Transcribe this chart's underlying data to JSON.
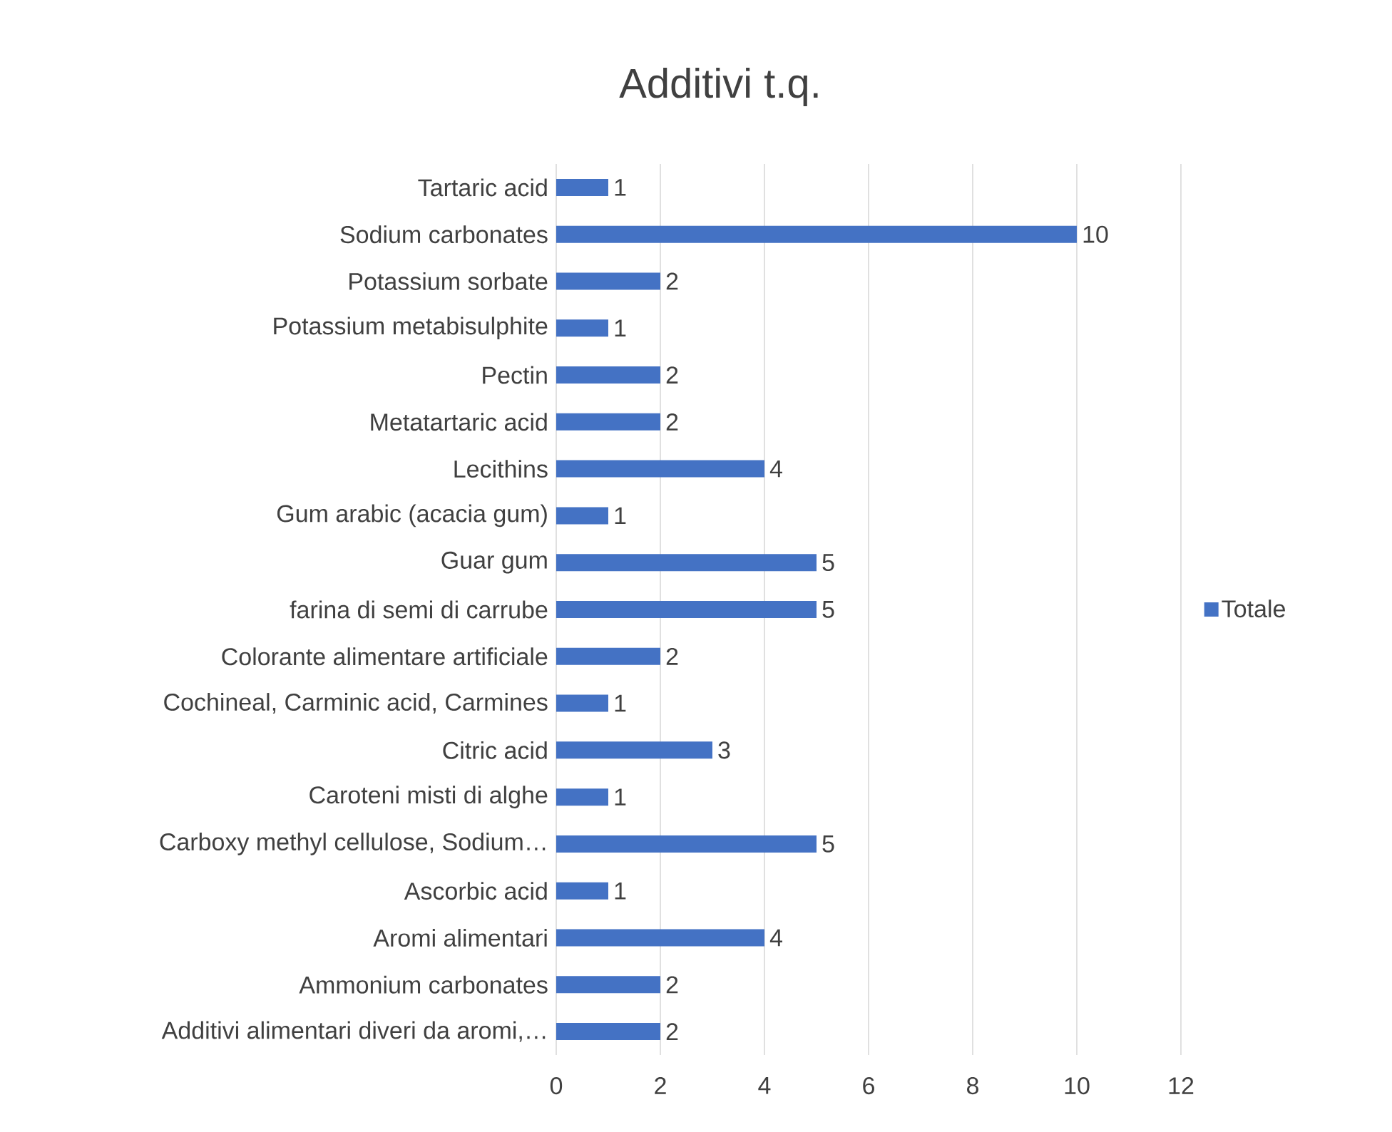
{
  "chart_data": {
    "type": "bar",
    "orientation": "horizontal",
    "title": "Additivi t.q.",
    "categories": [
      "Tartaric acid",
      "Sodium carbonates",
      "Potassium sorbate",
      "Potassium metabisulphite",
      "Pectin",
      "Metatartaric acid",
      "Lecithins",
      "Gum arabic (acacia gum)",
      "Guar gum",
      "farina di semi di carrube",
      "Colorante alimentare artificiale",
      "Cochineal, Carminic acid, Carmines",
      "Citric acid",
      "Caroteni misti di alghe",
      "Carboxy methyl cellulose, Sodium…",
      "Ascorbic acid",
      "Aromi alimentari",
      "Ammonium carbonates",
      "Additivi alimentari diveri da aromi,…"
    ],
    "series": [
      {
        "name": "Totale",
        "color": "#4472c4",
        "values": [
          1,
          10,
          2,
          1,
          2,
          2,
          4,
          1,
          5,
          5,
          2,
          1,
          3,
          1,
          5,
          1,
          4,
          2,
          2
        ]
      }
    ],
    "xlim": [
      0,
      12
    ],
    "xticks": [
      0,
      2,
      4,
      6,
      8,
      10,
      12
    ],
    "grid": "x",
    "legend": "right",
    "data_labels": true
  }
}
